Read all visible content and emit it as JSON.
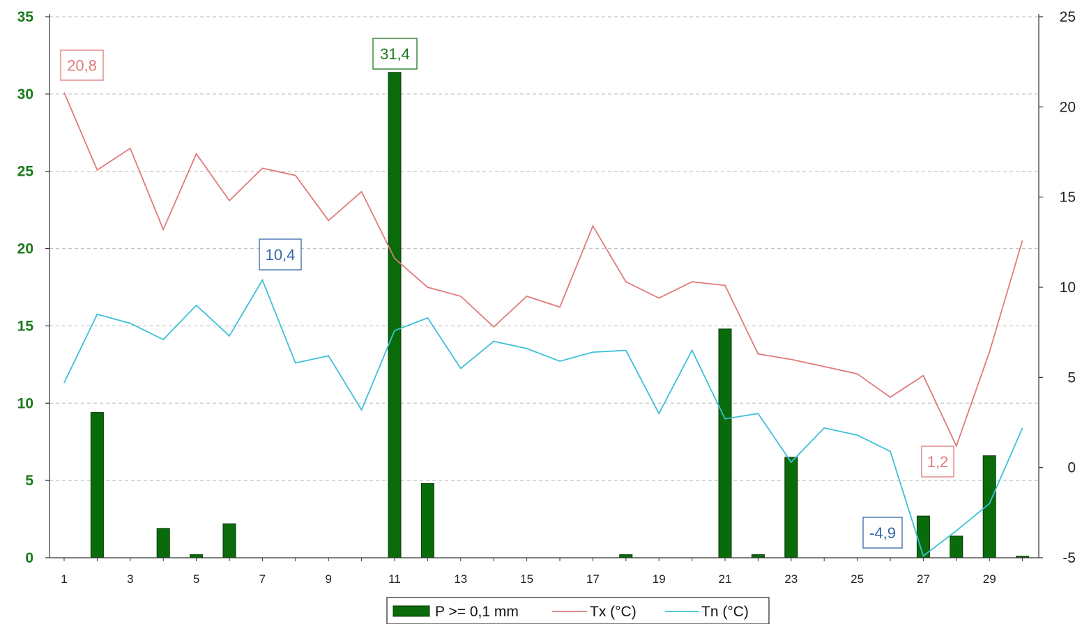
{
  "chart_data": {
    "type": "bar",
    "x": [
      1,
      2,
      3,
      4,
      5,
      6,
      7,
      8,
      9,
      10,
      11,
      12,
      13,
      14,
      15,
      16,
      17,
      18,
      19,
      20,
      21,
      22,
      23,
      24,
      25,
      26,
      27,
      28,
      29,
      30
    ],
    "x_tick_labels": [
      "1",
      "3",
      "5",
      "7",
      "9",
      "11",
      "13",
      "15",
      "17",
      "19",
      "21",
      "23",
      "25",
      "27",
      "29"
    ],
    "y_left_ticks": [
      "0",
      "5",
      "10",
      "15",
      "20",
      "25",
      "30",
      "35"
    ],
    "y_right_ticks": [
      "-5",
      "0",
      "5",
      "10",
      "15",
      "20",
      "25"
    ],
    "y_left_range": [
      0,
      35
    ],
    "y_right_range": [
      -5,
      25
    ],
    "grid": "horizontal dashed",
    "legend_position": "bottom",
    "series": [
      {
        "name": "P >= 0,1 mm",
        "kind": "bar",
        "axis": "left",
        "color": "#0a6b0a",
        "values": [
          0,
          9.4,
          0,
          1.9,
          0.2,
          2.2,
          0,
          0,
          0,
          0,
          31.4,
          4.8,
          0,
          0,
          0,
          0,
          0,
          0.2,
          0,
          0,
          14.8,
          0.2,
          6.5,
          0,
          0,
          0,
          2.7,
          1.4,
          6.6,
          0.1
        ]
      },
      {
        "name": "Tx (°C)",
        "kind": "line",
        "axis": "right",
        "color": "#e07a7a",
        "values": [
          20.8,
          16.5,
          17.7,
          13.2,
          17.4,
          14.8,
          16.6,
          16.2,
          13.7,
          15.3,
          11.6,
          10.0,
          9.5,
          7.8,
          9.5,
          8.9,
          13.4,
          10.3,
          9.4,
          10.3,
          10.1,
          6.3,
          6.0,
          5.6,
          5.2,
          3.9,
          5.1,
          1.2,
          6.4,
          12.6
        ]
      },
      {
        "name": "Tn (°C)",
        "kind": "line",
        "axis": "right",
        "color": "#3cc0d8",
        "values": [
          4.7,
          8.5,
          8.0,
          7.1,
          9.0,
          7.3,
          10.4,
          5.8,
          6.2,
          3.2,
          7.6,
          8.3,
          5.5,
          7.0,
          6.6,
          5.9,
          6.4,
          6.5,
          3.0,
          6.5,
          2.7,
          3.0,
          0.3,
          2.2,
          1.8,
          0.9,
          -4.9,
          -3.5,
          -2.0,
          2.2
        ]
      }
    ],
    "annotations": [
      {
        "text": "31,4",
        "series": 0,
        "day": 11,
        "color": "#1a7a1a"
      },
      {
        "text": "20,8",
        "series": 1,
        "day": 1,
        "color": "#e07a7a"
      },
      {
        "text": "1,2",
        "series": 1,
        "day": 28,
        "color": "#e07a7a"
      },
      {
        "text": "10,4",
        "series": 2,
        "day": 7,
        "color": "#3366aa"
      },
      {
        "text": "-4,9",
        "series": 2,
        "day": 27,
        "color": "#3366aa"
      }
    ]
  }
}
